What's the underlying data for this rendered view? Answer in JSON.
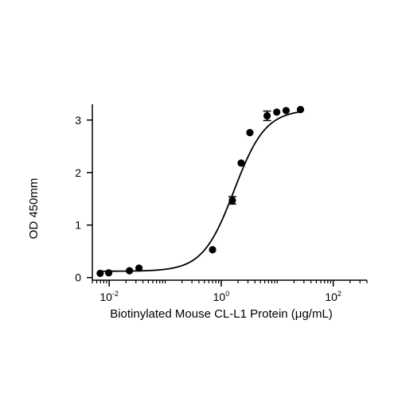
{
  "chart_data": {
    "type": "scatter",
    "title": "",
    "xlabel": "Biotinylated Mouse CL-L1 Protein (μg/mL)",
    "ylabel": "OD 450mm",
    "x_scale": "log10",
    "xlim": [
      0.005,
      400
    ],
    "ylim": [
      -0.05,
      3.3
    ],
    "x_major_ticks": [
      {
        "value": 0.01,
        "base": "10",
        "exponent": "-2"
      },
      {
        "value": 1,
        "base": "10",
        "exponent": "0"
      },
      {
        "value": 100,
        "base": "10",
        "exponent": "2"
      }
    ],
    "y_ticks": [
      0,
      1,
      2,
      3
    ],
    "y_tick_labels": [
      "0",
      "1",
      "2",
      "3"
    ],
    "grid": false,
    "legend": "none",
    "series": [
      {
        "points": [
          {
            "x": 0.0069,
            "y": 0.08,
            "err": 0
          },
          {
            "x": 0.0098,
            "y": 0.09,
            "err": 0
          },
          {
            "x": 0.023,
            "y": 0.13,
            "err": 0
          },
          {
            "x": 0.034,
            "y": 0.18,
            "err": 0
          },
          {
            "x": 0.7,
            "y": 0.53,
            "err": 0
          },
          {
            "x": 1.58,
            "y": 1.47,
            "err": 0.07
          },
          {
            "x": 2.27,
            "y": 2.18,
            "err": 0
          },
          {
            "x": 3.25,
            "y": 2.76,
            "err": 0
          },
          {
            "x": 6.6,
            "y": 3.08,
            "err": 0.09
          },
          {
            "x": 9.8,
            "y": 3.15,
            "err": 0
          },
          {
            "x": 14.4,
            "y": 3.18,
            "err": 0
          },
          {
            "x": 26,
            "y": 3.2,
            "err": 0
          }
        ],
        "fit": {
          "model": "4PL",
          "bottom": 0.12,
          "top": 3.2,
          "ec50": 1.7,
          "hill": 1.55
        },
        "color": "#000000"
      }
    ]
  }
}
